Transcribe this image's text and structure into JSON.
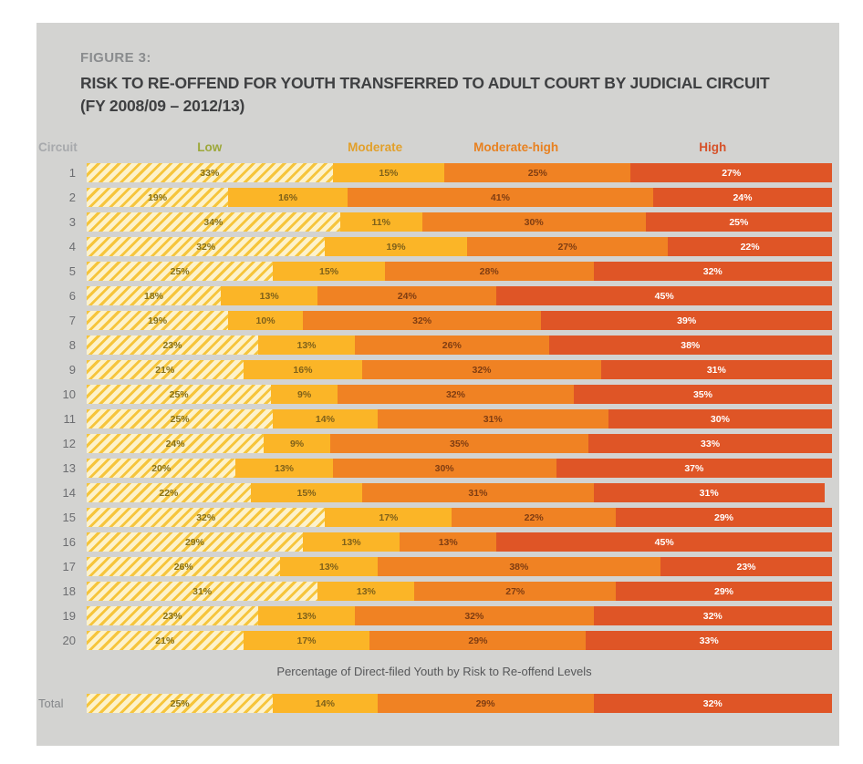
{
  "figure": {
    "label": "FIGURE 3:",
    "title": "RISK TO RE-OFFEND FOR YOUTH TRANSFERRED TO ADULT COURT BY JUDICIAL CIRCUIT",
    "subtitle": "(FY 2008/09 – 2012/13)"
  },
  "colors": {
    "panel_background": "#d3d3d1",
    "page_background": "#ffffff",
    "title_text": "#3f4042",
    "figure_label_text": "#8a8c8e",
    "circuit_header_text": "#a7a9ac",
    "row_label_text": "#6d6e71",
    "axis_label_text": "#565759"
  },
  "chart_data": {
    "type": "bar",
    "stacked": true,
    "orientation": "horizontal",
    "title": "RISK TO RE-OFFEND FOR YOUTH TRANSFERRED TO ADULT COURT BY JUDICIAL CIRCUIT (FY 2008/09 – 2012/13)",
    "xlabel": "Percentage of Direct-filed Youth by Risk to Re-offend Levels",
    "xlim": [
      0,
      100
    ],
    "grid": false,
    "legend_position": "top",
    "row_header": "Circuit",
    "legend_x_percent": [
      16.5,
      38.7,
      57.6,
      84.0
    ],
    "categories": [
      "1",
      "2",
      "3",
      "4",
      "5",
      "6",
      "7",
      "8",
      "9",
      "10",
      "11",
      "12",
      "13",
      "14",
      "15",
      "16",
      "17",
      "18",
      "19",
      "20"
    ],
    "series": [
      {
        "name": "Low",
        "pattern": "diagonal-hatch",
        "color": "#f6c53c",
        "pattern_bg": "#fdf2cb",
        "header_color": "#9da83a",
        "label_color": "#857019",
        "values": [
          33,
          19,
          34,
          32,
          25,
          18,
          19,
          23,
          21,
          25,
          25,
          24,
          20,
          22,
          32,
          29,
          26,
          31,
          23,
          21
        ]
      },
      {
        "name": "Moderate",
        "pattern": "solid",
        "color": "#fbb527",
        "header_color": "#e2a02b",
        "label_color": "#7f611a",
        "values": [
          15,
          16,
          11,
          19,
          15,
          13,
          10,
          13,
          16,
          9,
          14,
          9,
          13,
          15,
          17,
          13,
          13,
          13,
          13,
          17
        ]
      },
      {
        "name": "Moderate-high",
        "pattern": "solid",
        "color": "#f08223",
        "header_color": "#e88120",
        "label_color": "#7f3d12",
        "values": [
          25,
          41,
          30,
          27,
          28,
          24,
          32,
          26,
          32,
          32,
          31,
          35,
          30,
          31,
          22,
          13,
          38,
          27,
          32,
          29
        ]
      },
      {
        "name": "High",
        "pattern": "solid",
        "color": "#df5526",
        "header_color": "#d6522a",
        "label_color": "#ffffff",
        "values": [
          27,
          24,
          25,
          22,
          32,
          45,
          39,
          38,
          31,
          35,
          30,
          33,
          37,
          31,
          29,
          45,
          23,
          29,
          32,
          33
        ]
      }
    ],
    "total": {
      "label": "Total",
      "values": [
        25,
        14,
        29,
        32
      ]
    },
    "unit": "%"
  }
}
